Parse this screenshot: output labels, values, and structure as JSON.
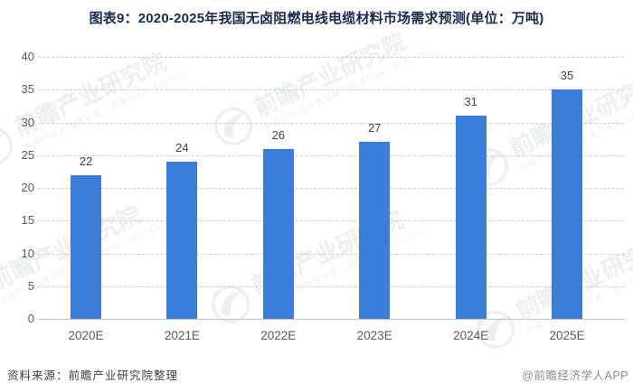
{
  "title": "图表9：2020-2025年我国无卤阻燃电线电缆材料市场需求预测(单位：万吨)",
  "chart_data": {
    "type": "bar",
    "categories": [
      "2020E",
      "2021E",
      "2022E",
      "2023E",
      "2024E",
      "2025E"
    ],
    "values": [
      22,
      24,
      26,
      27,
      31,
      35
    ],
    "title": "图表9：2020-2025年我国无卤阻燃电线电缆材料市场需求预测(单位：万吨)",
    "unit": "万吨",
    "xlabel": "",
    "ylabel": "",
    "ylim": [
      0,
      40
    ],
    "ytick_step": 5,
    "yticks": [
      0,
      5,
      10,
      15,
      20,
      25,
      30,
      35,
      40
    ],
    "grid": true,
    "legend_position": "none",
    "bar_color": "#3b7dd8"
  },
  "footer": {
    "source": "资料来源：前瞻产业研究院整理",
    "credit": "@前瞻经济学人APP"
  },
  "watermark": {
    "brand": "前瞻产业研究院",
    "sub": "中国产业咨询领导者（股票代码：839599）",
    "logo_icon": "qianzhan-swoosh-circle-icon"
  },
  "colors": {
    "bar": "#3b7dd8",
    "title_text": "#182b4d",
    "axis_text": "#595959",
    "value_text": "#404040",
    "gridline": "#cfcfcf",
    "source_text": "#3d3d3d",
    "credit_text": "#8c8c8c"
  }
}
